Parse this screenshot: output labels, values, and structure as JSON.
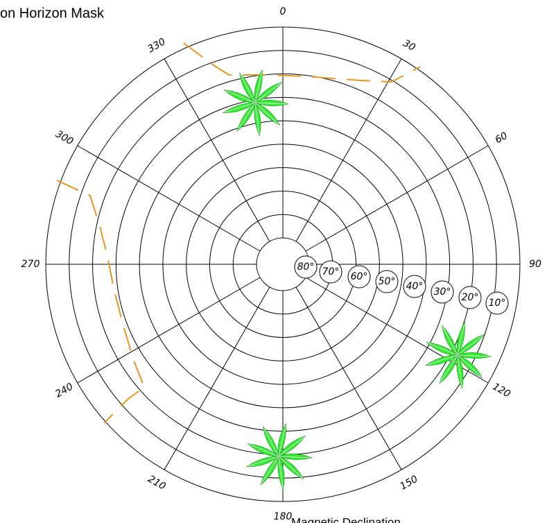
{
  "title": "on Horizon Mask",
  "azimuth_labels": [
    "0",
    "30",
    "60",
    "90",
    "120",
    "150",
    "180",
    "210",
    "240",
    "270",
    "300",
    "330"
  ],
  "elevation_labels": [
    "80°",
    "70°",
    "60°",
    "50°",
    "40°",
    "30°",
    "20°",
    "10°"
  ],
  "footer": "Magnetic Declination"
}
